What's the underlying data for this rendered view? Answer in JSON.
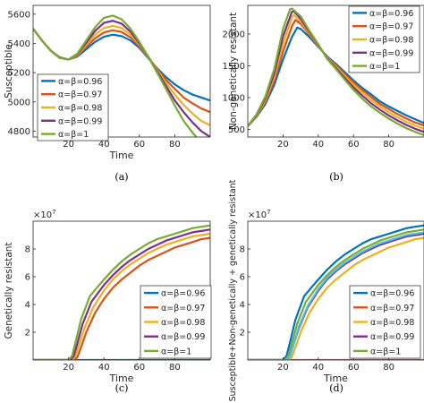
{
  "chart_data": [
    {
      "panel_label": "(a)",
      "type": "line",
      "xlabel": "Time",
      "ylabel": "Susceptible",
      "xlim": [
        0,
        100
      ],
      "ylim": [
        4760,
        5660
      ],
      "xticks": [
        20,
        40,
        60,
        80
      ],
      "yticks": [
        4800,
        5000,
        5200,
        5400,
        5600
      ],
      "legend": "bottom-left",
      "series": [
        {
          "name": "α=β=0.96",
          "color": "#0072BD",
          "x": [
            0,
            5,
            10,
            15,
            20,
            25,
            30,
            35,
            40,
            45,
            50,
            55,
            60,
            65,
            70,
            75,
            80,
            85,
            90,
            95,
            100
          ],
          "y": [
            5500,
            5420,
            5350,
            5305,
            5290,
            5310,
            5360,
            5410,
            5445,
            5460,
            5450,
            5420,
            5370,
            5300,
            5230,
            5170,
            5120,
            5080,
            5050,
            5030,
            5010
          ]
        },
        {
          "name": "α=β=0.97",
          "color": "#D95319",
          "x": [
            0,
            5,
            10,
            15,
            20,
            25,
            30,
            35,
            40,
            45,
            50,
            55,
            60,
            65,
            70,
            75,
            80,
            85,
            90,
            95,
            100
          ],
          "y": [
            5500,
            5420,
            5350,
            5303,
            5290,
            5315,
            5375,
            5435,
            5475,
            5490,
            5478,
            5440,
            5380,
            5305,
            5225,
            5150,
            5090,
            5030,
            4990,
            4955,
            4930
          ]
        },
        {
          "name": "α=β=0.98",
          "color": "#EDB120",
          "x": [
            0,
            5,
            10,
            15,
            20,
            25,
            30,
            35,
            40,
            45,
            50,
            55,
            60,
            65,
            70,
            75,
            80,
            85,
            90,
            95,
            100
          ],
          "y": [
            5500,
            5420,
            5350,
            5302,
            5290,
            5320,
            5390,
            5460,
            5505,
            5520,
            5505,
            5460,
            5390,
            5310,
            5220,
            5130,
            5050,
            4980,
            4920,
            4870,
            4840
          ]
        },
        {
          "name": "α=β=0.99",
          "color": "#7E2F8E",
          "x": [
            0,
            5,
            10,
            15,
            20,
            25,
            30,
            35,
            40,
            45,
            50,
            55,
            60,
            65,
            70,
            75,
            80,
            85,
            90,
            95,
            100
          ],
          "y": [
            5500,
            5420,
            5350,
            5301,
            5290,
            5325,
            5405,
            5485,
            5540,
            5555,
            5535,
            5480,
            5400,
            5310,
            5210,
            5110,
            5010,
            4930,
            4860,
            4800,
            4760
          ]
        },
        {
          "name": "α=β=1",
          "color": "#77AC30",
          "x": [
            0,
            5,
            10,
            15,
            20,
            25,
            30,
            35,
            40,
            45,
            50,
            55,
            60,
            65,
            70,
            75,
            80,
            85,
            90,
            95,
            100
          ],
          "y": [
            5500,
            5420,
            5350,
            5300,
            5290,
            5330,
            5420,
            5510,
            5575,
            5590,
            5565,
            5500,
            5410,
            5310,
            5200,
            5090,
            4975,
            4870,
            4790,
            4720,
            4660
          ]
        }
      ]
    },
    {
      "panel_label": "(b)",
      "type": "line",
      "xlabel": "",
      "ylabel": "Non-genetically resistant",
      "xlim": [
        0,
        100
      ],
      "ylim": [
        380,
        2450
      ],
      "xticks": [
        20,
        40,
        60,
        80
      ],
      "yticks": [
        500,
        1000,
        1500,
        2000
      ],
      "legend": "top-right",
      "series": [
        {
          "name": "α=β=0.96",
          "color": "#0072BD",
          "x": [
            0,
            5,
            10,
            15,
            20,
            25,
            28,
            30,
            35,
            40,
            45,
            50,
            55,
            60,
            65,
            70,
            75,
            80,
            85,
            90,
            95,
            100
          ],
          "y": [
            550,
            700,
            900,
            1200,
            1600,
            1950,
            2100,
            2080,
            1950,
            1800,
            1650,
            1530,
            1400,
            1270,
            1150,
            1050,
            940,
            860,
            790,
            720,
            660,
            600
          ]
        },
        {
          "name": "α=β=0.97",
          "color": "#D95319",
          "x": [
            0,
            5,
            10,
            15,
            20,
            25,
            27,
            30,
            35,
            40,
            45,
            50,
            55,
            60,
            65,
            70,
            75,
            80,
            85,
            90,
            95,
            100
          ],
          "y": [
            550,
            710,
            930,
            1260,
            1720,
            2120,
            2220,
            2160,
            1990,
            1810,
            1640,
            1510,
            1370,
            1240,
            1120,
            1010,
            900,
            820,
            740,
            670,
            610,
            560
          ]
        },
        {
          "name": "α=β=0.98",
          "color": "#EDB120",
          "x": [
            0,
            5,
            10,
            15,
            20,
            25,
            26,
            30,
            35,
            40,
            45,
            50,
            55,
            60,
            65,
            70,
            75,
            80,
            85,
            90,
            95,
            100
          ],
          "y": [
            550,
            720,
            960,
            1320,
            1840,
            2260,
            2300,
            2200,
            2010,
            1820,
            1630,
            1490,
            1340,
            1200,
            1080,
            960,
            860,
            770,
            690,
            620,
            560,
            510
          ]
        },
        {
          "name": "α=β=0.99",
          "color": "#7E2F8E",
          "x": [
            0,
            5,
            10,
            15,
            20,
            25,
            26,
            30,
            35,
            40,
            45,
            50,
            55,
            60,
            65,
            70,
            75,
            80,
            85,
            90,
            95,
            100
          ],
          "y": [
            550,
            730,
            990,
            1380,
            1960,
            2350,
            2360,
            2240,
            2030,
            1830,
            1620,
            1470,
            1310,
            1160,
            1030,
            910,
            810,
            720,
            640,
            570,
            510,
            460
          ]
        },
        {
          "name": "α=β=1",
          "color": "#77AC30",
          "x": [
            0,
            5,
            10,
            15,
            20,
            24,
            25,
            30,
            35,
            40,
            45,
            50,
            55,
            60,
            65,
            70,
            75,
            80,
            85,
            90,
            95,
            100
          ],
          "y": [
            550,
            740,
            1020,
            1450,
            2080,
            2390,
            2400,
            2280,
            2050,
            1840,
            1610,
            1450,
            1280,
            1120,
            980,
            860,
            760,
            670,
            590,
            520,
            460,
            410
          ]
        }
      ]
    },
    {
      "panel_label": "(c)",
      "type": "line",
      "xlabel": "Time",
      "ylabel": "Genetically resistant",
      "y_exponent": "×10",
      "y_exponent_power": "7",
      "xlim": [
        0,
        100
      ],
      "ylim": [
        0,
        10
      ],
      "xticks": [
        20,
        40,
        60,
        80
      ],
      "yticks": [
        2,
        4,
        6,
        8
      ],
      "legend": "bottom-right",
      "series": [
        {
          "name": "α=β=0.96",
          "color": "#0072BD",
          "x": [
            0,
            100
          ],
          "y": [
            0,
            0
          ]
        },
        {
          "name": "α=β=0.97",
          "color": "#D95319",
          "x": [
            0,
            23,
            25,
            27,
            30,
            35,
            40,
            45,
            50,
            55,
            60,
            65,
            70,
            75,
            80,
            85,
            90,
            95,
            100
          ],
          "y": [
            0,
            0,
            0.2,
            0.9,
            2.0,
            3.4,
            4.4,
            5.2,
            5.8,
            6.3,
            6.8,
            7.2,
            7.5,
            7.8,
            8.1,
            8.3,
            8.5,
            8.7,
            8.8
          ]
        },
        {
          "name": "α=β=0.98",
          "color": "#EDB120",
          "x": [
            0,
            22,
            24,
            26,
            29,
            34,
            40,
            45,
            50,
            55,
            60,
            65,
            70,
            75,
            80,
            85,
            90,
            95,
            100
          ],
          "y": [
            0,
            0,
            0.3,
            1.1,
            2.3,
            3.8,
            5.0,
            5.8,
            6.4,
            6.9,
            7.3,
            7.7,
            8.0,
            8.3,
            8.5,
            8.7,
            8.9,
            9.0,
            9.1
          ]
        },
        {
          "name": "α=β=0.99",
          "color": "#7E2F8E",
          "x": [
            0,
            21,
            23,
            25,
            28,
            33,
            40,
            45,
            50,
            55,
            60,
            65,
            70,
            75,
            80,
            85,
            90,
            95,
            100
          ],
          "y": [
            0,
            0,
            0.3,
            1.2,
            2.6,
            4.2,
            5.4,
            6.1,
            6.7,
            7.2,
            7.6,
            8.0,
            8.3,
            8.6,
            8.8,
            9.0,
            9.2,
            9.3,
            9.4
          ]
        },
        {
          "name": "α=β=1",
          "color": "#77AC30",
          "x": [
            0,
            20,
            22,
            24,
            27,
            32,
            40,
            45,
            50,
            55,
            60,
            65,
            70,
            75,
            80,
            85,
            90,
            95,
            100
          ],
          "y": [
            0,
            0,
            0.3,
            1.3,
            2.9,
            4.6,
            5.8,
            6.5,
            7.1,
            7.6,
            8.0,
            8.4,
            8.7,
            8.9,
            9.1,
            9.3,
            9.5,
            9.6,
            9.7
          ]
        }
      ]
    },
    {
      "panel_label": "(d)",
      "type": "line",
      "xlabel": "Time",
      "ylabel": "Susceptible+Non-genetically + genetically resistant",
      "y_exponent": "×10",
      "y_exponent_power": "7",
      "xlim": [
        0,
        100
      ],
      "ylim": [
        0,
        10
      ],
      "xticks": [
        20,
        40,
        60,
        80
      ],
      "yticks": [
        2,
        4,
        6,
        8
      ],
      "legend": "bottom-right",
      "series": [
        {
          "name": "α=β=0.96",
          "color": "#0072BD",
          "x": [
            0,
            20,
            22,
            24,
            27,
            32,
            40,
            45,
            50,
            55,
            60,
            65,
            70,
            75,
            80,
            85,
            90,
            95,
            100
          ],
          "y": [
            0,
            0,
            0.3,
            1.3,
            2.9,
            4.6,
            5.8,
            6.5,
            7.1,
            7.6,
            8.0,
            8.4,
            8.7,
            8.9,
            9.1,
            9.3,
            9.5,
            9.6,
            9.7
          ]
        },
        {
          "name": "α=β=0.97",
          "color": "#D95319",
          "x": [
            0,
            100
          ],
          "y": [
            0,
            0
          ]
        },
        {
          "name": "α=β=0.98",
          "color": "#EDB120",
          "x": [
            0,
            23,
            25,
            27,
            30,
            35,
            40,
            45,
            50,
            55,
            60,
            65,
            70,
            75,
            80,
            85,
            90,
            95,
            100
          ],
          "y": [
            0,
            0,
            0.2,
            0.9,
            2.0,
            3.4,
            4.4,
            5.2,
            5.8,
            6.3,
            6.8,
            7.2,
            7.5,
            7.8,
            8.1,
            8.3,
            8.5,
            8.7,
            8.8
          ]
        },
        {
          "name": "α=β=0.99",
          "color": "#7E2F8E",
          "x": [
            0,
            22,
            24,
            26,
            29,
            34,
            40,
            45,
            50,
            55,
            60,
            65,
            70,
            75,
            80,
            85,
            90,
            95,
            100
          ],
          "y": [
            0,
            0,
            0.3,
            1.1,
            2.3,
            3.8,
            5.0,
            5.8,
            6.4,
            6.9,
            7.3,
            7.7,
            8.0,
            8.3,
            8.5,
            8.7,
            8.9,
            9.0,
            9.1
          ]
        },
        {
          "name": "α=β=1",
          "color": "#77AC30",
          "x": [
            0,
            21,
            23,
            25,
            28,
            33,
            40,
            45,
            50,
            55,
            60,
            65,
            70,
            75,
            80,
            85,
            90,
            95,
            100
          ],
          "y": [
            0,
            0,
            0.3,
            1.2,
            2.6,
            4.2,
            5.4,
            6.1,
            6.7,
            7.2,
            7.6,
            8.0,
            8.3,
            8.6,
            8.8,
            9.0,
            9.2,
            9.3,
            9.4
          ]
        },
        {
          "name": "",
          "color": "#4DBEEE",
          "x": [
            0,
            22,
            24,
            26,
            29,
            34,
            40,
            45,
            50,
            55,
            60,
            65,
            70,
            75,
            80,
            85,
            90,
            95,
            100
          ],
          "y": [
            0,
            0,
            0.3,
            1.1,
            2.4,
            3.9,
            5.1,
            5.9,
            6.5,
            7.0,
            7.4,
            7.8,
            8.1,
            8.4,
            8.6,
            8.8,
            9.0,
            9.1,
            9.2
          ]
        }
      ]
    }
  ]
}
